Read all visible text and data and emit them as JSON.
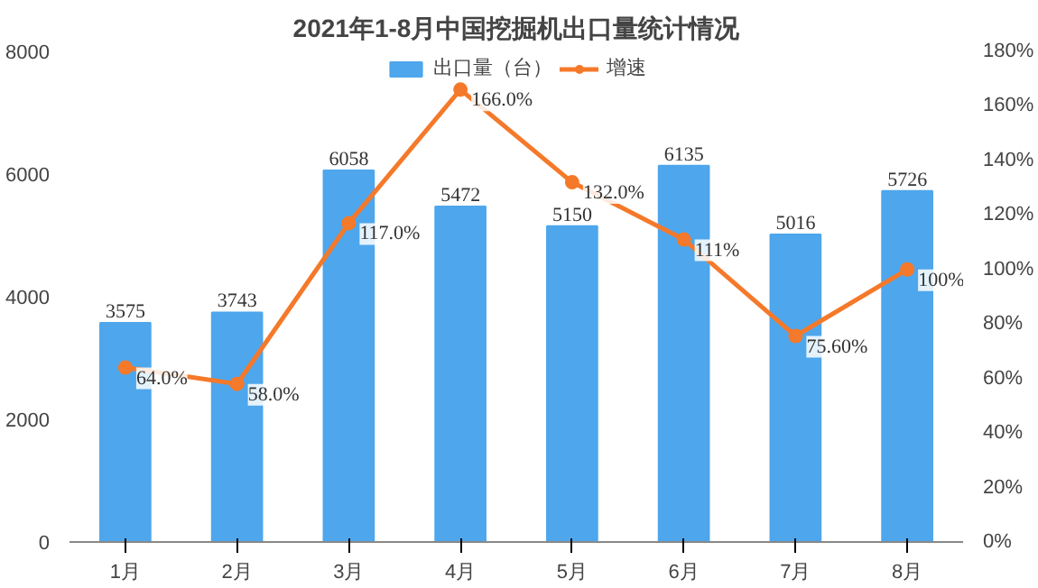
{
  "chart_data": {
    "type": "bar",
    "title": "2021年1-8月中国挖掘机出口量统计情况",
    "categories": [
      "1月",
      "2月",
      "3月",
      "4月",
      "5月",
      "6月",
      "7月",
      "8月"
    ],
    "series": [
      {
        "name": "出口量（台）",
        "color": "#4ea6ec",
        "values": [
          3575,
          3743,
          6058,
          5472,
          5150,
          6135,
          5016,
          5726
        ],
        "value_labels": [
          "3575",
          "3743",
          "6058",
          "5472",
          "5150",
          "6135",
          "5016",
          "5726"
        ]
      },
      {
        "name": "增速",
        "type": "line",
        "axis": "y2",
        "color": "#f5792a",
        "values": [
          64.0,
          58.0,
          117.0,
          166.0,
          132.0,
          111,
          75.6,
          100
        ],
        "value_labels": [
          "64.0%",
          "58.0%",
          "117.0%",
          "166.0%",
          "132.0%",
          "111%",
          "75.60%",
          "100%"
        ]
      }
    ],
    "ylim": [
      0,
      8000
    ],
    "yticks": [
      0,
      2000,
      4000,
      6000,
      8000
    ],
    "y2lim": [
      0,
      180
    ],
    "y2ticks": [
      {
        "value": 0,
        "label": "0%"
      },
      {
        "value": 20,
        "label": "20%"
      },
      {
        "value": 40,
        "label": "40%"
      },
      {
        "value": 60,
        "label": "60%"
      },
      {
        "value": 80,
        "label": "80%"
      },
      {
        "value": 100,
        "label": "100%"
      },
      {
        "value": 120,
        "label": "120%"
      },
      {
        "value": 140,
        "label": "140%"
      },
      {
        "value": 160,
        "label": "160%"
      },
      {
        "value": 180,
        "label": "180%"
      }
    ],
    "legend": "top",
    "marker": "circle",
    "line_style": "solid",
    "grid": false
  }
}
